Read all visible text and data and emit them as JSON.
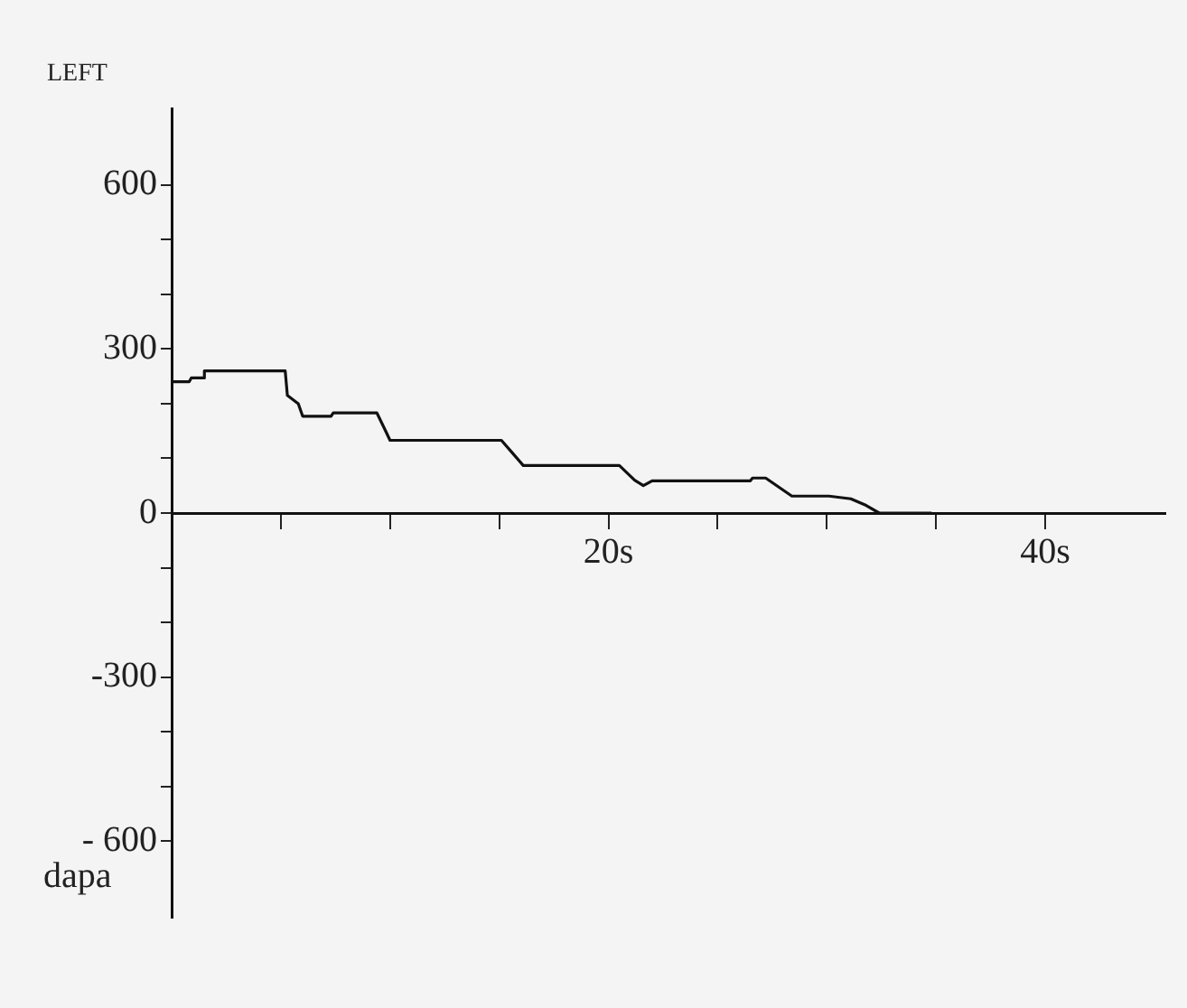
{
  "chart_data": {
    "type": "line",
    "title": "LEFT",
    "ylabel": "dapa",
    "x": [
      0,
      0.8,
      0.9,
      1.5,
      1.5,
      5.2,
      5.3,
      5.8,
      6.0,
      7.3,
      7.4,
      9.4,
      9.8,
      10.0,
      15.1,
      15.6,
      16.1,
      20.5,
      21.2,
      21.6,
      22.0,
      26.5,
      26.6,
      27.2,
      28.4,
      30.1,
      31.1,
      31.8,
      32.4,
      34.8
    ],
    "series": [
      {
        "color": "#111111",
        "values": [
          240,
          240,
          247,
          247,
          260,
          260,
          215,
          200,
          177,
          177,
          183,
          183,
          150,
          133,
          133,
          110,
          87,
          87,
          60,
          50,
          59,
          59,
          64,
          64,
          31,
          31,
          26,
          14,
          0,
          0
        ]
      }
    ],
    "xlim": [
      0,
      45.5
    ],
    "xticks": [
      {
        "value": 5,
        "label": null
      },
      {
        "value": 10,
        "label": null
      },
      {
        "value": 15,
        "label": null
      },
      {
        "value": 20,
        "label": "20s"
      },
      {
        "value": 25,
        "label": null
      },
      {
        "value": 30,
        "label": null
      },
      {
        "value": 35,
        "label": null
      },
      {
        "value": 40,
        "label": "40s"
      }
    ],
    "ylim": [
      -740,
      740
    ],
    "yticks": [
      {
        "value": -600,
        "label": "- 600"
      },
      {
        "value": -500,
        "label": null
      },
      {
        "value": -400,
        "label": null
      },
      {
        "value": -300,
        "label": "-300"
      },
      {
        "value": -200,
        "label": null
      },
      {
        "value": -100,
        "label": null
      },
      0,
      {
        "value": 100,
        "label": null
      },
      {
        "value": 200,
        "label": null
      },
      300,
      {
        "value": 400,
        "label": null
      },
      {
        "value": 500,
        "label": null
      },
      600
    ],
    "grid": false,
    "legend": false,
    "marker": "none",
    "line_style": "solid"
  }
}
